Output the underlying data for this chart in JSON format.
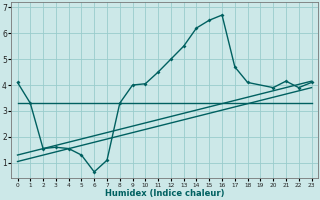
{
  "title": "",
  "xlabel": "Humidex (Indice chaleur)",
  "bg_color": "#cce8e8",
  "line_color": "#006060",
  "grid_color": "#99cccc",
  "xlim": [
    -0.5,
    23.5
  ],
  "ylim": [
    0.4,
    7.2
  ],
  "xticks": [
    0,
    1,
    2,
    3,
    4,
    5,
    6,
    7,
    8,
    9,
    10,
    11,
    12,
    13,
    14,
    15,
    16,
    17,
    18,
    19,
    20,
    21,
    22,
    23
  ],
  "yticks": [
    1,
    2,
    3,
    4,
    5,
    6,
    7
  ],
  "line1_x": [
    0,
    23
  ],
  "line1_y": [
    3.3,
    3.3
  ],
  "line2_x": [
    0,
    1,
    2,
    3,
    4,
    5,
    6,
    7,
    8,
    9,
    10,
    11,
    12,
    13,
    14,
    15,
    16,
    17,
    18,
    20,
    21,
    22,
    23
  ],
  "line2_y": [
    4.1,
    3.3,
    1.55,
    1.6,
    1.55,
    1.3,
    0.65,
    1.1,
    3.3,
    4.0,
    4.05,
    4.5,
    5.0,
    5.5,
    6.2,
    6.5,
    6.7,
    4.7,
    4.1,
    3.9,
    4.15,
    3.9,
    4.1
  ],
  "line3_x": [
    0,
    23
  ],
  "line3_y": [
    1.3,
    4.15
  ],
  "line4_x": [
    0,
    23
  ],
  "line4_y": [
    1.05,
    3.9
  ]
}
